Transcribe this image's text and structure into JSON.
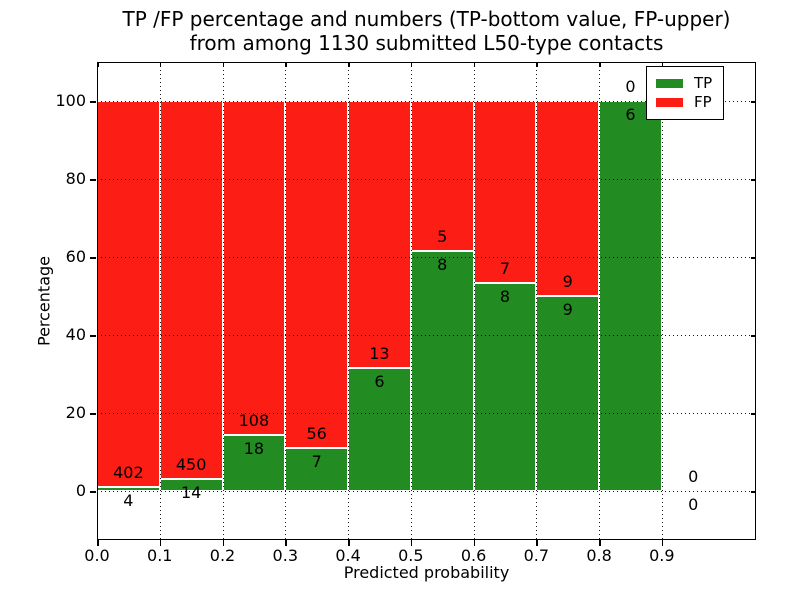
{
  "title": {
    "line1": "TP /FP percentage and numbers (TP-bottom value, FP-upper)",
    "line2": "from among 1130 submitted L50-type contacts"
  },
  "axes": {
    "xlabel": "Predicted probability",
    "ylabel": "Percentage",
    "xtick_labels": [
      "0.0",
      "0.1",
      "0.2",
      "0.3",
      "0.4",
      "0.5",
      "0.6",
      "0.7",
      "0.8",
      "0.9"
    ],
    "xtick_values": [
      0.0,
      0.1,
      0.2,
      0.3,
      0.4,
      0.5,
      0.6,
      0.7,
      0.8,
      0.9
    ],
    "ytick_labels": [
      "0",
      "20",
      "40",
      "60",
      "80",
      "100"
    ],
    "ytick_values": [
      0,
      20,
      40,
      60,
      80,
      100
    ]
  },
  "legend": {
    "items": [
      {
        "label": "TP",
        "color": "#228b22"
      },
      {
        "label": "FP",
        "color": "#fc1d14"
      }
    ]
  },
  "colors": {
    "tp": "#228b22",
    "fp": "#fc1d14",
    "bar_edge": "#ffffff",
    "grid": "#000000",
    "text": "#000000",
    "background": "#ffffff"
  },
  "chart_data": {
    "type": "bar",
    "stacked": true,
    "normalized_to_percent": true,
    "title": "TP /FP percentage and numbers (TP-bottom value, FP-upper) from among 1130 submitted L50-type contacts",
    "total_submitted_contacts": 1130,
    "xlabel": "Predicted probability",
    "ylabel": "Percentage",
    "xlim": [
      0,
      1.05
    ],
    "ylim": [
      -12.5,
      110
    ],
    "grid": true,
    "grid_style": "dotted",
    "legend_position": "upper right",
    "bin_width": 0.1,
    "bins": [
      {
        "x_start": 0.0,
        "x_end": 0.1,
        "tp": 4,
        "fp": 402,
        "tp_pct": 0.99,
        "fp_pct": 99.01
      },
      {
        "x_start": 0.1,
        "x_end": 0.2,
        "tp": 14,
        "fp": 450,
        "tp_pct": 3.02,
        "fp_pct": 96.98
      },
      {
        "x_start": 0.2,
        "x_end": 0.3,
        "tp": 18,
        "fp": 108,
        "tp_pct": 14.29,
        "fp_pct": 85.71
      },
      {
        "x_start": 0.3,
        "x_end": 0.4,
        "tp": 7,
        "fp": 56,
        "tp_pct": 11.11,
        "fp_pct": 88.89
      },
      {
        "x_start": 0.4,
        "x_end": 0.5,
        "tp": 6,
        "fp": 13,
        "tp_pct": 31.58,
        "fp_pct": 68.42
      },
      {
        "x_start": 0.5,
        "x_end": 0.6,
        "tp": 8,
        "fp": 5,
        "tp_pct": 61.54,
        "fp_pct": 38.46
      },
      {
        "x_start": 0.6,
        "x_end": 0.7,
        "tp": 8,
        "fp": 7,
        "tp_pct": 53.33,
        "fp_pct": 46.67
      },
      {
        "x_start": 0.7,
        "x_end": 0.8,
        "tp": 9,
        "fp": 9,
        "tp_pct": 50.0,
        "fp_pct": 50.0
      },
      {
        "x_start": 0.8,
        "x_end": 0.9,
        "tp": 6,
        "fp": 0,
        "tp_pct": 100.0,
        "fp_pct": 0.0
      },
      {
        "x_start": 0.9,
        "x_end": 1.0,
        "tp": 0,
        "fp": 0,
        "tp_pct": 0.0,
        "fp_pct": 0.0
      }
    ],
    "series": [
      {
        "name": "TP",
        "color": "#228b22",
        "values_pct": [
          0.99,
          3.02,
          14.29,
          11.11,
          31.58,
          61.54,
          53.33,
          50.0,
          100.0,
          0.0
        ],
        "counts": [
          4,
          14,
          18,
          7,
          6,
          8,
          8,
          9,
          6,
          0
        ]
      },
      {
        "name": "FP",
        "color": "#fc1d14",
        "values_pct": [
          99.01,
          96.98,
          85.71,
          88.89,
          68.42,
          38.46,
          46.67,
          50.0,
          0.0,
          0.0
        ],
        "counts": [
          402,
          450,
          108,
          56,
          13,
          5,
          7,
          9,
          0,
          0
        ]
      }
    ]
  }
}
